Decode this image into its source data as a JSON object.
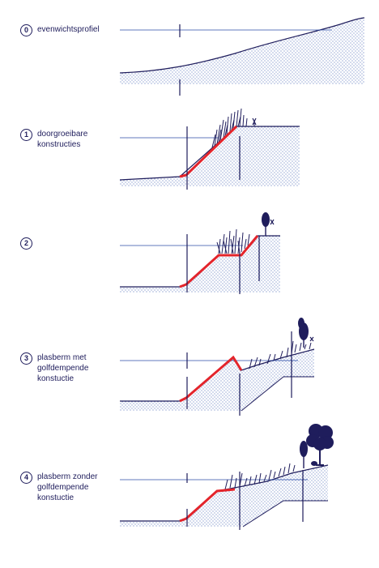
{
  "colors": {
    "ink": "#1f1d5c",
    "water_line": "#2b4ea8",
    "construction": "#e3242b",
    "fill_dots": "#2b4ea8"
  },
  "profiles": [
    {
      "number": "0",
      "label": "evenwichtsprofiel"
    },
    {
      "number": "1",
      "label": "doorgroeibare konstructies"
    },
    {
      "number": "2",
      "label": ""
    },
    {
      "number": "3",
      "label": "plasberm met golfdempende konstuctie"
    },
    {
      "number": "4",
      "label": "plasberm zonder golfdempende konstuctie"
    }
  ]
}
